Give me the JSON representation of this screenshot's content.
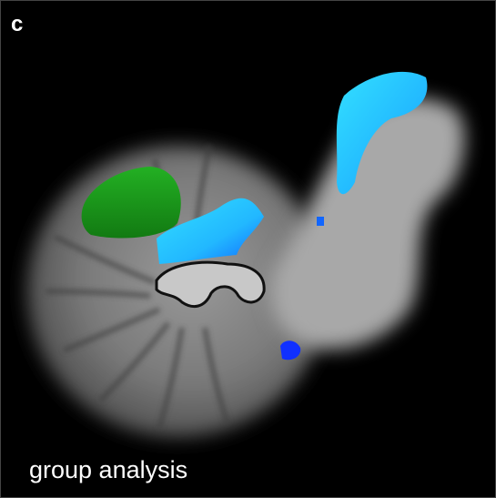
{
  "panel_label": "c",
  "caption": "group analysis"
}
